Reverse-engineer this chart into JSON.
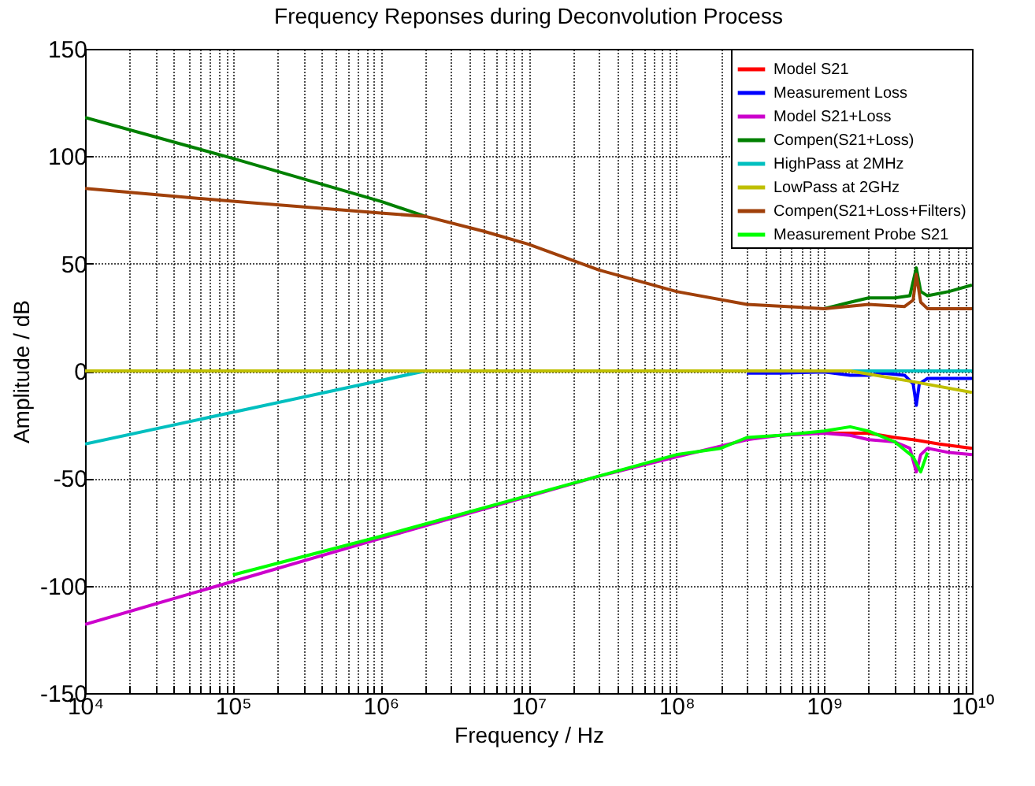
{
  "chart_data": {
    "type": "line",
    "title": "Frequency Reponses during Deconvolution Process",
    "xlabel": "Frequency / Hz",
    "ylabel": "Amplitude / dB",
    "log": "x",
    "grid": true,
    "legend": "top right",
    "xlim": [
      10000,
      10000000000
    ],
    "ylim": [
      -150,
      150
    ],
    "yticks": [
      -150,
      -100,
      -50,
      0,
      50,
      100,
      150
    ],
    "xticks": [
      {
        "value": 10000,
        "label": "10⁴"
      },
      {
        "value": 20000,
        "label": null
      },
      {
        "value": 30000,
        "label": null
      },
      {
        "value": 40000,
        "label": null
      },
      {
        "value": 50000,
        "label": null
      },
      {
        "value": 60000,
        "label": null
      },
      {
        "value": 70000,
        "label": null
      },
      {
        "value": 80000,
        "label": null
      },
      {
        "value": 90000,
        "label": null
      },
      {
        "value": 100000,
        "label": "10⁵"
      },
      {
        "value": 200000,
        "label": null
      },
      {
        "value": 300000,
        "label": null
      },
      {
        "value": 400000,
        "label": null
      },
      {
        "value": 500000,
        "label": null
      },
      {
        "value": 600000,
        "label": null
      },
      {
        "value": 700000,
        "label": null
      },
      {
        "value": 800000,
        "label": null
      },
      {
        "value": 900000,
        "label": null
      },
      {
        "value": 1000000,
        "label": "10⁶"
      },
      {
        "value": 2000000,
        "label": null
      },
      {
        "value": 3000000,
        "label": null
      },
      {
        "value": 4000000,
        "label": null
      },
      {
        "value": 5000000,
        "label": null
      },
      {
        "value": 6000000,
        "label": null
      },
      {
        "value": 7000000,
        "label": null
      },
      {
        "value": 8000000,
        "label": null
      },
      {
        "value": 9000000,
        "label": null
      },
      {
        "value": 10000000,
        "label": "10⁷"
      },
      {
        "value": 20000000,
        "label": null
      },
      {
        "value": 30000000,
        "label": null
      },
      {
        "value": 40000000,
        "label": null
      },
      {
        "value": 50000000,
        "label": null
      },
      {
        "value": 60000000,
        "label": null
      },
      {
        "value": 70000000,
        "label": null
      },
      {
        "value": 80000000,
        "label": null
      },
      {
        "value": 90000000,
        "label": null
      },
      {
        "value": 100000000,
        "label": "10⁸"
      },
      {
        "value": 200000000,
        "label": null
      },
      {
        "value": 300000000,
        "label": null
      },
      {
        "value": 400000000,
        "label": null
      },
      {
        "value": 500000000,
        "label": null
      },
      {
        "value": 600000000,
        "label": null
      },
      {
        "value": 700000000,
        "label": null
      },
      {
        "value": 800000000,
        "label": null
      },
      {
        "value": 900000000,
        "label": null
      },
      {
        "value": 1000000000,
        "label": "10⁹"
      },
      {
        "value": 2000000000,
        "label": null
      },
      {
        "value": 3000000000,
        "label": null
      },
      {
        "value": 4000000000,
        "label": null
      },
      {
        "value": 5000000000,
        "label": null
      },
      {
        "value": 6000000000,
        "label": null
      },
      {
        "value": 7000000000,
        "label": null
      },
      {
        "value": 8000000000,
        "label": null
      },
      {
        "value": 9000000000,
        "label": null
      },
      {
        "value": 10000000000,
        "label": "10¹⁰"
      }
    ],
    "series": [
      {
        "name": "Model S21",
        "color": "#ff0000",
        "x": [
          1000000000,
          2000000000,
          3000000000,
          4000000000,
          6000000000,
          10000000000
        ],
        "values": [
          -29,
          -29,
          -31,
          -32,
          -34,
          -36
        ]
      },
      {
        "name": "Measurement Loss",
        "color": "#0000ff",
        "x": [
          300000000,
          500000000,
          1000000000,
          1500000000,
          2000000000,
          2500000000,
          3500000000,
          4000000000,
          4200000000,
          4400000000,
          5000000000,
          10000000000
        ],
        "values": [
          -1,
          -1,
          -0.5,
          -2,
          -2,
          -1,
          -2,
          -6,
          -16,
          -6,
          -3.5,
          -3.5
        ]
      },
      {
        "name": "Model S21+Loss",
        "color": "#cc00cc",
        "x": [
          10000,
          100000,
          1000000,
          30000000,
          100000000,
          200000000,
          300000000,
          500000000,
          1000000000,
          1500000000,
          2000000000,
          3000000000,
          3800000000,
          4200000000,
          4500000000,
          5000000000,
          7000000000,
          10000000000
        ],
        "values": [
          -118,
          -98,
          -78,
          -49,
          -40,
          -35,
          -32,
          -30,
          -29,
          -30,
          -32,
          -33,
          -36,
          -47,
          -39,
          -36,
          -38,
          -39
        ]
      },
      {
        "name": "Compen(S21+Loss)",
        "color": "#008000",
        "x": [
          10000,
          100000,
          1000000,
          2000000,
          5000000,
          10000000,
          30000000,
          100000000,
          300000000,
          1000000000,
          1500000000,
          2000000000,
          3000000000,
          3800000000,
          4200000000,
          4500000000,
          5000000000,
          7000000000,
          10000000000
        ],
        "values": [
          118,
          99,
          79,
          72,
          null,
          null,
          null,
          null,
          null,
          29,
          32,
          34,
          34,
          35,
          48,
          37,
          35,
          37,
          40
        ]
      },
      {
        "name": "HighPass at 2MHz",
        "color": "#00bfbf",
        "x": [
          10000,
          2000000,
          10000000000
        ],
        "values": [
          -34,
          0,
          0
        ]
      },
      {
        "name": "LowPass at 2GHz",
        "color": "#bfbf00",
        "x": [
          10000,
          1500000000,
          4000000000,
          10000000000
        ],
        "values": [
          0,
          0,
          -5,
          -10
        ]
      },
      {
        "name": "Compen(S21+Loss+Filters)",
        "color": "#a0400a",
        "x": [
          10000,
          100000,
          1000000,
          2000000,
          5000000,
          10000000,
          30000000,
          100000000,
          300000000,
          1000000000,
          2000000000,
          3500000000,
          4000000000,
          4200000000,
          4500000000,
          5000000000,
          10000000000
        ],
        "values": [
          85,
          79,
          73.5,
          72,
          65,
          59,
          47,
          37,
          31,
          29,
          31,
          30,
          33,
          45,
          32,
          29,
          29
        ]
      },
      {
        "name": "Measurement Probe S21",
        "color": "#00ff00",
        "x": [
          100000,
          1000000,
          10000000,
          100000000,
          200000000,
          300000000,
          500000000,
          1000000000,
          1500000000,
          2000000000,
          3000000000,
          4000000000,
          4500000000,
          5000000000
        ],
        "values": [
          -95,
          -77,
          -58,
          -39,
          -36,
          -31,
          -30,
          -28,
          -26,
          -28,
          -33,
          -40,
          -47,
          -38
        ]
      }
    ]
  }
}
